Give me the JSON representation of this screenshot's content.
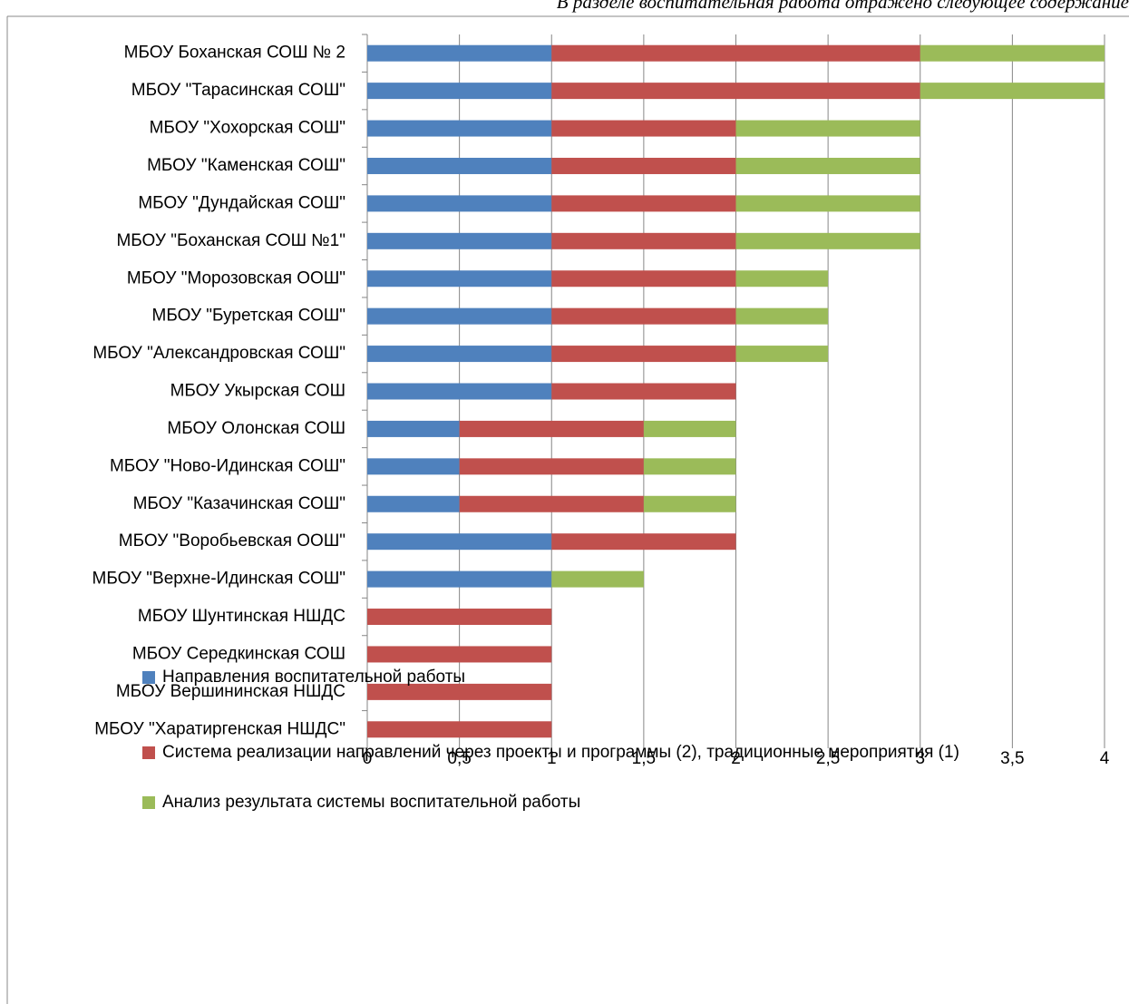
{
  "header": {
    "text": "В разделе воспитательная работа отражено следующее содержание"
  },
  "chart_data": {
    "type": "stacked-barh",
    "categories": [
      "МБОУ Боханская СОШ № 2",
      "МБОУ \"Тарасинская СОШ\"",
      "МБОУ \"Хохорская СОШ\"",
      "МБОУ \"Каменская СОШ\"",
      "МБОУ \"Дундайская СОШ\"",
      "МБОУ \"Боханская СОШ №1\"",
      "МБОУ \"Морозовская ООШ\"",
      "МБОУ \"Буретская СОШ\"",
      "МБОУ \"Александровская СОШ\"",
      "МБОУ Укырская СОШ",
      "МБОУ Олонская СОШ",
      "МБОУ \"Ново-Идинская СОШ\"",
      "МБОУ \"Казачинская СОШ\"",
      "МБОУ \"Воробьевская ООШ\"",
      "МБОУ \"Верхне-Идинская СОШ\"",
      "МБОУ Шунтинская НШДС",
      "МБОУ Середкинская СОШ",
      "МБОУ Вершининская НШДС",
      "МБОУ \"Харатиргенская НШДС\""
    ],
    "series": [
      {
        "name": "Направления воспитательной работы",
        "color": "#4f81bd",
        "values": [
          1,
          1,
          1,
          1,
          1,
          1,
          1,
          1,
          1,
          1,
          0.5,
          0.5,
          0.5,
          1,
          1,
          0,
          0,
          0,
          0
        ]
      },
      {
        "name": "Система реализации направлений через проекты и программы (2), традиционные мероприятия (1)",
        "color": "#c0504d",
        "values": [
          2,
          2,
          1,
          1,
          1,
          1,
          1,
          1,
          1,
          1,
          1,
          1,
          1,
          1,
          0,
          1,
          1,
          1,
          1
        ]
      },
      {
        "name": "Анализ результата системы воспитательной работы",
        "color": "#9bbb59",
        "values": [
          1,
          1,
          1,
          1,
          1,
          1,
          0.5,
          0.5,
          0.5,
          0,
          0.5,
          0.5,
          0.5,
          0,
          0.5,
          0,
          0,
          0,
          0
        ]
      }
    ],
    "xlim": [
      0,
      4
    ],
    "xticks": [
      0,
      {
        "value": 0.5,
        "label": "0,5"
      },
      1,
      {
        "value": 1.5,
        "label": "1,5"
      },
      2,
      {
        "value": 2.5,
        "label": "2,5"
      },
      3,
      {
        "value": 3.5,
        "label": "3,5"
      },
      4
    ],
    "grid": true
  }
}
